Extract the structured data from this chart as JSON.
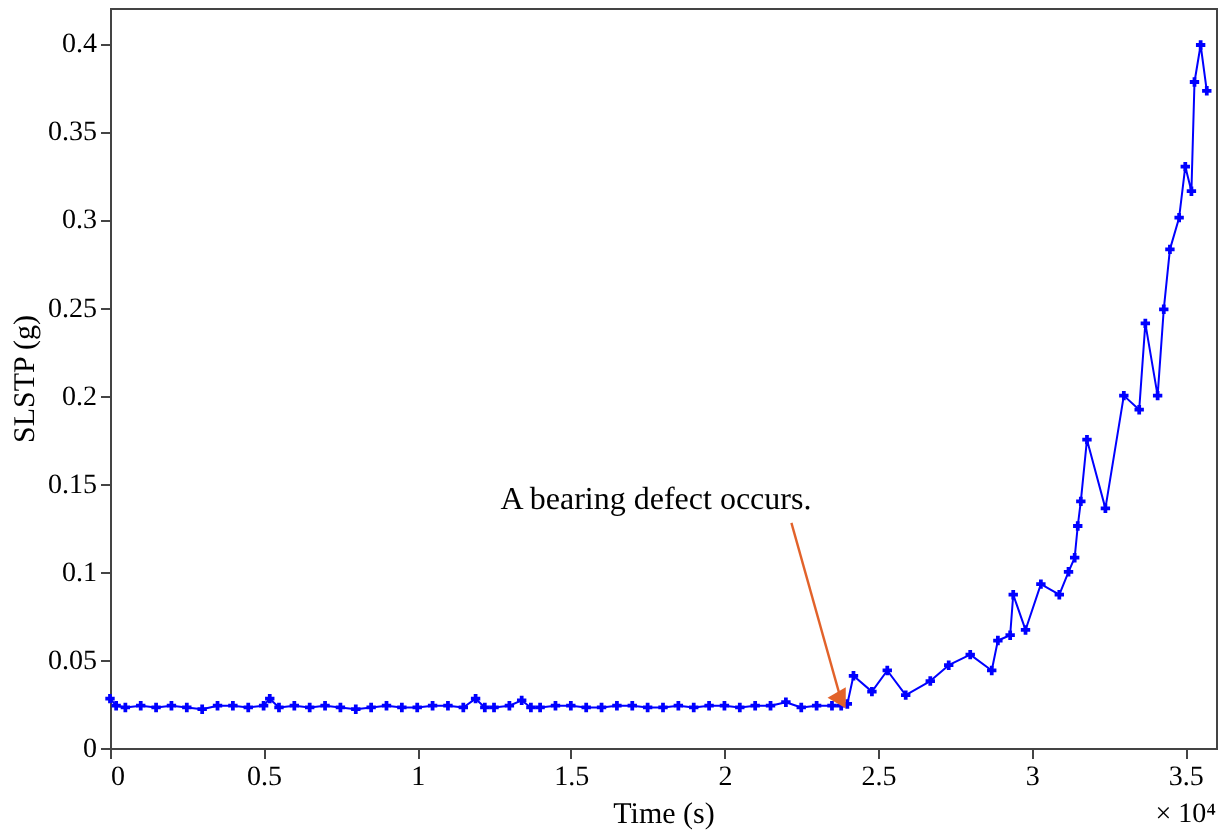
{
  "chart_data": {
    "type": "line",
    "xlabel": "Time (s)",
    "ylabel": "SLSTP (g)",
    "x": [
      0,
      0.02,
      0.05,
      0.1,
      0.15,
      0.2,
      0.25,
      0.3,
      0.35,
      0.4,
      0.45,
      0.5,
      0.52,
      0.55,
      0.6,
      0.65,
      0.7,
      0.75,
      0.8,
      0.85,
      0.9,
      0.95,
      1.0,
      1.05,
      1.1,
      1.15,
      1.19,
      1.22,
      1.25,
      1.3,
      1.34,
      1.37,
      1.4,
      1.45,
      1.5,
      1.55,
      1.6,
      1.65,
      1.7,
      1.75,
      1.8,
      1.85,
      1.9,
      1.95,
      2.0,
      2.05,
      2.1,
      2.15,
      2.2,
      2.25,
      2.3,
      2.35,
      2.38,
      2.4,
      2.42,
      2.48,
      2.53,
      2.59,
      2.67,
      2.73,
      2.8,
      2.87,
      2.89,
      2.93,
      2.94,
      2.98,
      3.03,
      3.09,
      3.12,
      3.14,
      3.15,
      3.16,
      3.18,
      3.24,
      3.3,
      3.35,
      3.37,
      3.41,
      3.43,
      3.45,
      3.48,
      3.5,
      3.52,
      3.53,
      3.55,
      3.57
    ],
    "series": [
      {
        "color": "#0000ff",
        "values": [
          0.028,
          0.024,
          0.023,
          0.024,
          0.023,
          0.024,
          0.023,
          0.022,
          0.024,
          0.024,
          0.023,
          0.024,
          0.028,
          0.023,
          0.024,
          0.023,
          0.024,
          0.023,
          0.022,
          0.023,
          0.024,
          0.023,
          0.023,
          0.024,
          0.024,
          0.023,
          0.028,
          0.023,
          0.023,
          0.024,
          0.027,
          0.023,
          0.023,
          0.024,
          0.024,
          0.023,
          0.023,
          0.024,
          0.024,
          0.023,
          0.023,
          0.024,
          0.023,
          0.024,
          0.024,
          0.023,
          0.024,
          0.024,
          0.026,
          0.023,
          0.024,
          0.024,
          0.024,
          0.025,
          0.041,
          0.032,
          0.044,
          0.03,
          0.038,
          0.047,
          0.053,
          0.044,
          0.061,
          0.064,
          0.087,
          0.067,
          0.093,
          0.087,
          0.1,
          0.108,
          0.126,
          0.14,
          0.175,
          0.136,
          0.2,
          0.192,
          0.241,
          0.2,
          0.249,
          0.283,
          0.301,
          0.33,
          0.316,
          0.378,
          0.399,
          0.373
        ]
      }
    ],
    "xlim": [
      0,
      3.6
    ],
    "xticks": [
      0,
      0.5,
      1,
      1.5,
      2,
      2.5,
      3,
      3.5
    ],
    "ylim": [
      0,
      0.42
    ],
    "yticks": [
      0,
      0.05,
      0.1,
      0.15,
      0.2,
      0.25,
      0.3,
      0.35,
      0.4
    ],
    "grid": false,
    "legend": false,
    "marker": "cross",
    "line_style": "solid",
    "annotations": [
      {
        "text": "A bearing defect occurs.",
        "x": 2.38,
        "y": 0.027
      },
      "× 10⁴"
    ]
  }
}
